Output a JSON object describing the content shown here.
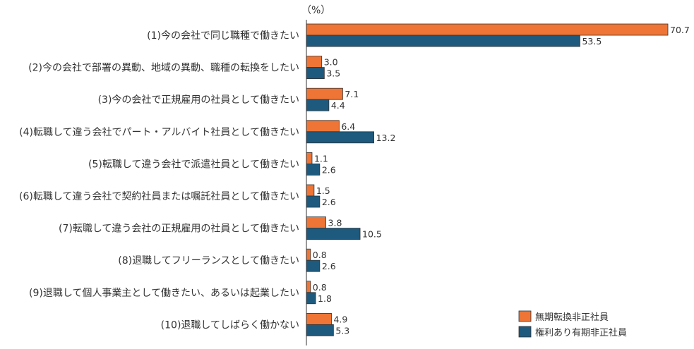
{
  "chart_data": {
    "type": "bar",
    "orientation": "horizontal",
    "unit": "（%）",
    "categories": [
      "(1)今の会社で同じ職種で働きたい",
      "(2)今の会社で部署の異動、地域の異動、職種の転換をしたい",
      "(3)今の会社で正規雇用の社員として働きたい",
      "(4)転職して違う会社でパート・アルバイト社員として働きたい",
      "(5)転職して違う会社で派遣社員として働きたい",
      "(6)転職して違う会社で契約社員または嘱託社員として働きたい",
      "(7)転職して違う会社の正規雇用の社員として働きたい",
      "(8)退職してフリーランスとして働きたい",
      "(9)退職して個人事業主として働きたい、あるいは起業したい",
      "(10)退職してしばらく働かない"
    ],
    "series": [
      {
        "name": "無期転換非正社員",
        "color": "#ee7535",
        "values": [
          70.7,
          3.0,
          7.1,
          6.4,
          1.1,
          1.5,
          3.8,
          0.8,
          0.8,
          4.9
        ],
        "labels": [
          "70.7",
          "3.0",
          "7.1",
          "6.4",
          "1.1",
          "1.5",
          "3.8",
          "0.8",
          "0.8",
          "4.9"
        ]
      },
      {
        "name": "権利あり有期非正社員",
        "color": "#1d5a7e",
        "values": [
          53.5,
          3.5,
          4.4,
          13.2,
          2.6,
          2.6,
          10.5,
          2.6,
          1.8,
          5.3
        ],
        "labels": [
          "53.5",
          "3.5",
          "4.4",
          "13.2",
          "2.6",
          "2.6",
          "10.5",
          "2.6",
          "1.8",
          "5.3"
        ]
      }
    ],
    "xlim": [
      0,
      70.7
    ],
    "grid": false,
    "legend_position": "bottom-right"
  }
}
